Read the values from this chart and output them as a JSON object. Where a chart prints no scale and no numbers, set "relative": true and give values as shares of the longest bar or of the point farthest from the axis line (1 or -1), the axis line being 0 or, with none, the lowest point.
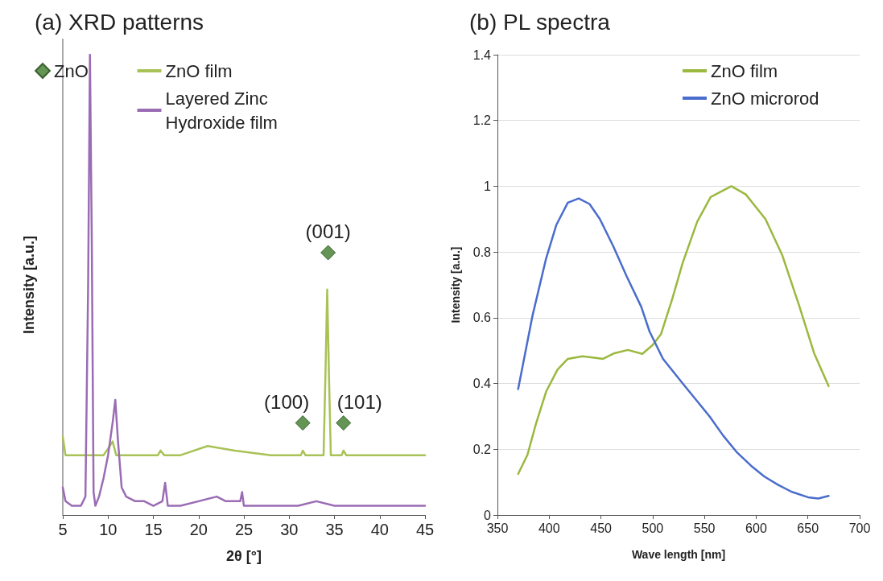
{
  "chart_data": [
    {
      "type": "line",
      "title": "(a) XRD patterns",
      "xlabel": "2θ [°]",
      "ylabel": "Intensity [a.u.]",
      "relative": true,
      "xlim": [
        5,
        45
      ],
      "xticks": [
        5,
        10,
        15,
        20,
        25,
        30,
        35,
        40,
        45
      ],
      "grid": false,
      "legend": "top",
      "tick_labels": "x",
      "line_style": "solid",
      "series": [
        {
          "name": "ZnO",
          "type": "scatter",
          "marker": "diamond",
          "color": "#3d7a2a",
          "x": [
            31.5,
            34.3,
            36.0
          ],
          "values": [
            0.2,
            0.57,
            0.2
          ]
        },
        {
          "name": "ZnO film",
          "color": "#a8c256",
          "x": [
            5,
            5.3,
            6,
            8,
            9.5,
            10.2,
            10.5,
            10.9,
            12,
            15.5,
            15.8,
            16.2,
            18,
            21,
            24,
            28,
            31.3,
            31.5,
            31.8,
            33.8,
            34.0,
            34.2,
            34.4,
            34.6,
            35.8,
            36.0,
            36.3,
            40,
            45
          ],
          "values": [
            0.17,
            0.13,
            0.13,
            0.13,
            0.13,
            0.15,
            0.16,
            0.13,
            0.13,
            0.13,
            0.14,
            0.13,
            0.13,
            0.15,
            0.14,
            0.13,
            0.13,
            0.14,
            0.13,
            0.13,
            0.3,
            0.49,
            0.3,
            0.13,
            0.13,
            0.14,
            0.13,
            0.13,
            0.13
          ]
        },
        {
          "name": "Layered Zinc Hydroxide film",
          "color": "#9a6cb4",
          "x": [
            5,
            5.3,
            6,
            7,
            7.5,
            7.8,
            8.0,
            8.2,
            8.4,
            8.6,
            9,
            9.5,
            10,
            10.5,
            10.8,
            11.1,
            11.5,
            12,
            13,
            14,
            15,
            16,
            16.3,
            16.6,
            18,
            20,
            22,
            23,
            24.6,
            24.8,
            25,
            28,
            31,
            33,
            35,
            40,
            45
          ],
          "values": [
            0.06,
            0.03,
            0.02,
            0.02,
            0.04,
            0.5,
            1.0,
            0.6,
            0.05,
            0.02,
            0.04,
            0.08,
            0.13,
            0.2,
            0.25,
            0.16,
            0.06,
            0.04,
            0.03,
            0.03,
            0.02,
            0.03,
            0.07,
            0.02,
            0.02,
            0.03,
            0.04,
            0.03,
            0.03,
            0.05,
            0.02,
            0.02,
            0.02,
            0.03,
            0.02,
            0.02,
            0.02
          ]
        }
      ],
      "annotations": [
        {
          "text": "(100)",
          "x": 31.5,
          "y": 0.2
        },
        {
          "text": "(001)",
          "x": 34.3,
          "y": 0.57
        },
        {
          "text": "(101)",
          "x": 36.0,
          "y": 0.2
        }
      ]
    },
    {
      "type": "line",
      "title": "(b) PL spectra",
      "xlabel": "Wave length [nm]",
      "ylabel": "Intensity [a.u.]",
      "xlim": [
        350,
        700
      ],
      "xticks": [
        350,
        400,
        450,
        500,
        550,
        600,
        650,
        700
      ],
      "ylim": [
        0,
        1.4
      ],
      "yticks": [
        0,
        0.2,
        0.4,
        0.6,
        0.8,
        1,
        1.2,
        1.4
      ],
      "grid": "y",
      "legend": "top right",
      "line_style": "solid",
      "series": [
        {
          "name": "ZnO film",
          "color": "#9bb83f",
          "x": [
            370,
            379,
            387,
            397,
            408,
            418,
            432,
            442,
            452,
            463,
            476,
            490,
            500,
            508,
            519,
            529,
            543,
            556,
            576,
            590,
            609,
            625,
            641,
            656,
            670
          ],
          "values": [
            0.125,
            0.183,
            0.275,
            0.375,
            0.442,
            0.475,
            0.483,
            0.479,
            0.475,
            0.492,
            0.502,
            0.49,
            0.517,
            0.55,
            0.658,
            0.767,
            0.892,
            0.967,
            1.0,
            0.975,
            0.9,
            0.792,
            0.642,
            0.492,
            0.392
          ]
        },
        {
          "name": "ZnO microrod",
          "color": "#4a6ccc",
          "x": [
            370,
            384,
            397,
            407,
            418,
            428.5,
            439,
            449,
            462,
            475,
            489,
            497,
            510,
            529,
            542,
            555,
            568,
            581,
            595,
            608,
            621,
            634,
            650,
            660,
            670
          ],
          "values": [
            0.383,
            0.608,
            0.78,
            0.883,
            0.95,
            0.963,
            0.946,
            0.9,
            0.817,
            0.725,
            0.633,
            0.558,
            0.475,
            0.4,
            0.35,
            0.3,
            0.242,
            0.192,
            0.15,
            0.117,
            0.092,
            0.071,
            0.054,
            0.05,
            0.058
          ]
        }
      ]
    }
  ]
}
